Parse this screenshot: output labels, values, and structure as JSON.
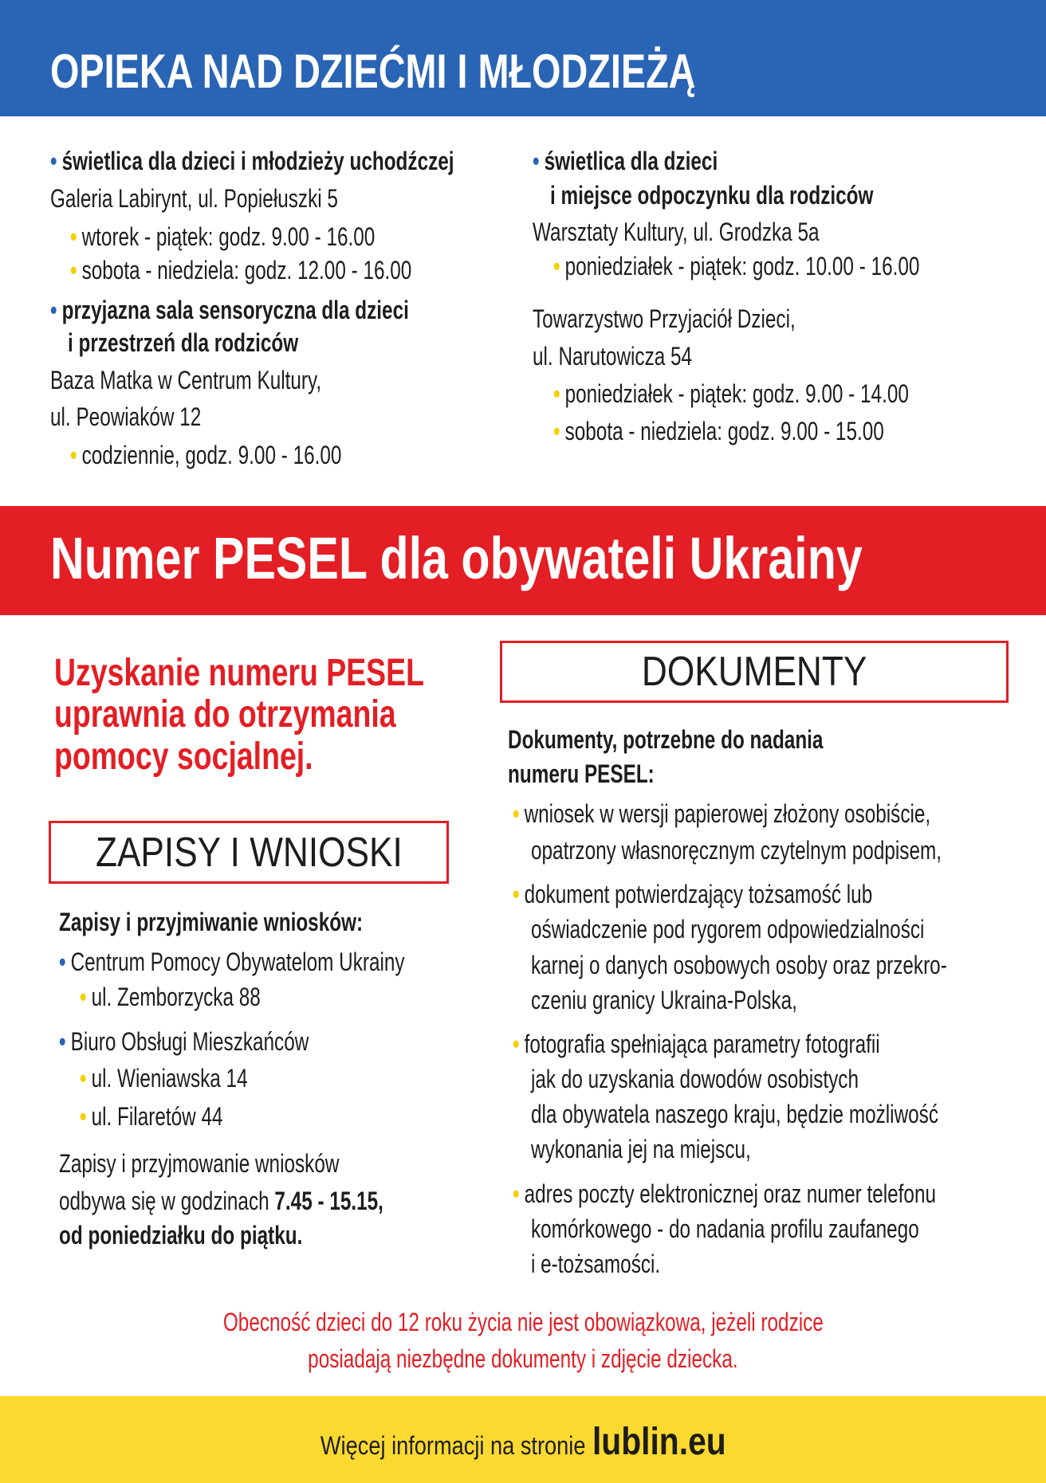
{
  "colors": {
    "blue": "#2a64b4",
    "red": "#e31e24",
    "yellow": "#fcd930"
  },
  "section1": {
    "title": "OPIEKA NAD DZIEĆMI I MŁODZIEŻĄ",
    "left": {
      "item1_title": "świetlica dla dzieci i młodzieży uchodźczej",
      "item1_address": "Galeria Labirynt, ul. Popiełuszki 5",
      "item1_hours": [
        "wtorek - piątek: godz. 9.00 - 16.00",
        "sobota - niedziela: godz. 12.00 - 16.00"
      ],
      "item2_title": [
        "przyjazna sala sensoryczna dla dzieci",
        "i przestrzeń dla rodziców"
      ],
      "item2_address": [
        "Baza Matka w Centrum Kultury,",
        "ul. Peowiaków 12"
      ],
      "item2_hours": "codziennie, godz. 9.00 - 16.00"
    },
    "right": {
      "item_title": [
        "świetlica dla dzieci",
        "i miejsce odpoczynku dla rodziców"
      ],
      "place1_address": "Warsztaty Kultury, ul. Grodzka 5a",
      "place1_hours": "poniedziałek - piątek: godz. 10.00 - 16.00",
      "place2_address": [
        "Towarzystwo Przyjaciół Dzieci,",
        "ul. Narutowicza 54"
      ],
      "place2_hours": [
        "poniedziałek - piątek: godz. 9.00 - 14.00",
        "sobota - niedziela: godz. 9.00 - 15.00"
      ]
    }
  },
  "section2": {
    "title": "Numer PESEL dla obywateli Ukrainy",
    "lead": [
      "Uzyskanie numeru PESEL",
      "uprawnia do otrzymania",
      "pomocy socjalnej."
    ],
    "zapisy": {
      "box_title": "ZAPISY I WNIOSKI",
      "heading": "Zapisy i przyjmiwanie wniosków:",
      "office1": "Centrum Pomocy Obywatelom Ukrainy",
      "office1_addresses": [
        "ul. Zemborzycka 88"
      ],
      "office2": "Biuro Obsługi Mieszkańców",
      "office2_addresses": [
        "ul. Wieniawska 14",
        "ul. Filaretów 44"
      ],
      "hours_line1": "Zapisy i przyjmowanie wniosków",
      "hours_line2_prefix": "odbywa się w godzinach ",
      "hours_line2_bold": "7.45 - 15.15,",
      "hours_line3": "od poniedziałku do piątku."
    },
    "dokumenty": {
      "box_title": "DOKUMENTY",
      "heading": [
        "Dokumenty, potrzebne do nadania",
        "numeru PESEL:"
      ],
      "items": [
        [
          "wniosek w wersji papierowej złożony osobiście,",
          "opatrzony własnoręcznym czytelnym podpisem,"
        ],
        [
          "dokument potwierdzający tożsamość lub",
          "oświadczenie pod rygorem odpowiedzialności",
          "karnej o danych osobowych osoby oraz przekro-",
          "czeniu granicy Ukraina-Polska,"
        ],
        [
          "fotografia spełniająca parametry fotografii",
          "jak do uzyskania dowodów osobistych",
          "dla obywatela naszego kraju, będzie możliwość",
          "wykonania jej na miejscu,"
        ],
        [
          "adres poczty elektronicznej oraz numer telefonu",
          "komórkowego - do nadania profilu zaufanego",
          "i e-tożsamości."
        ]
      ]
    },
    "note": [
      "Obecność dzieci do 12 roku życia nie jest obowiązkowa, jeżeli rodzice",
      "posiadają niezbędne dokumenty i zdjęcie dziecka."
    ]
  },
  "footer": {
    "text": "Więcej informacji na stronie",
    "site": "lublin.eu"
  }
}
